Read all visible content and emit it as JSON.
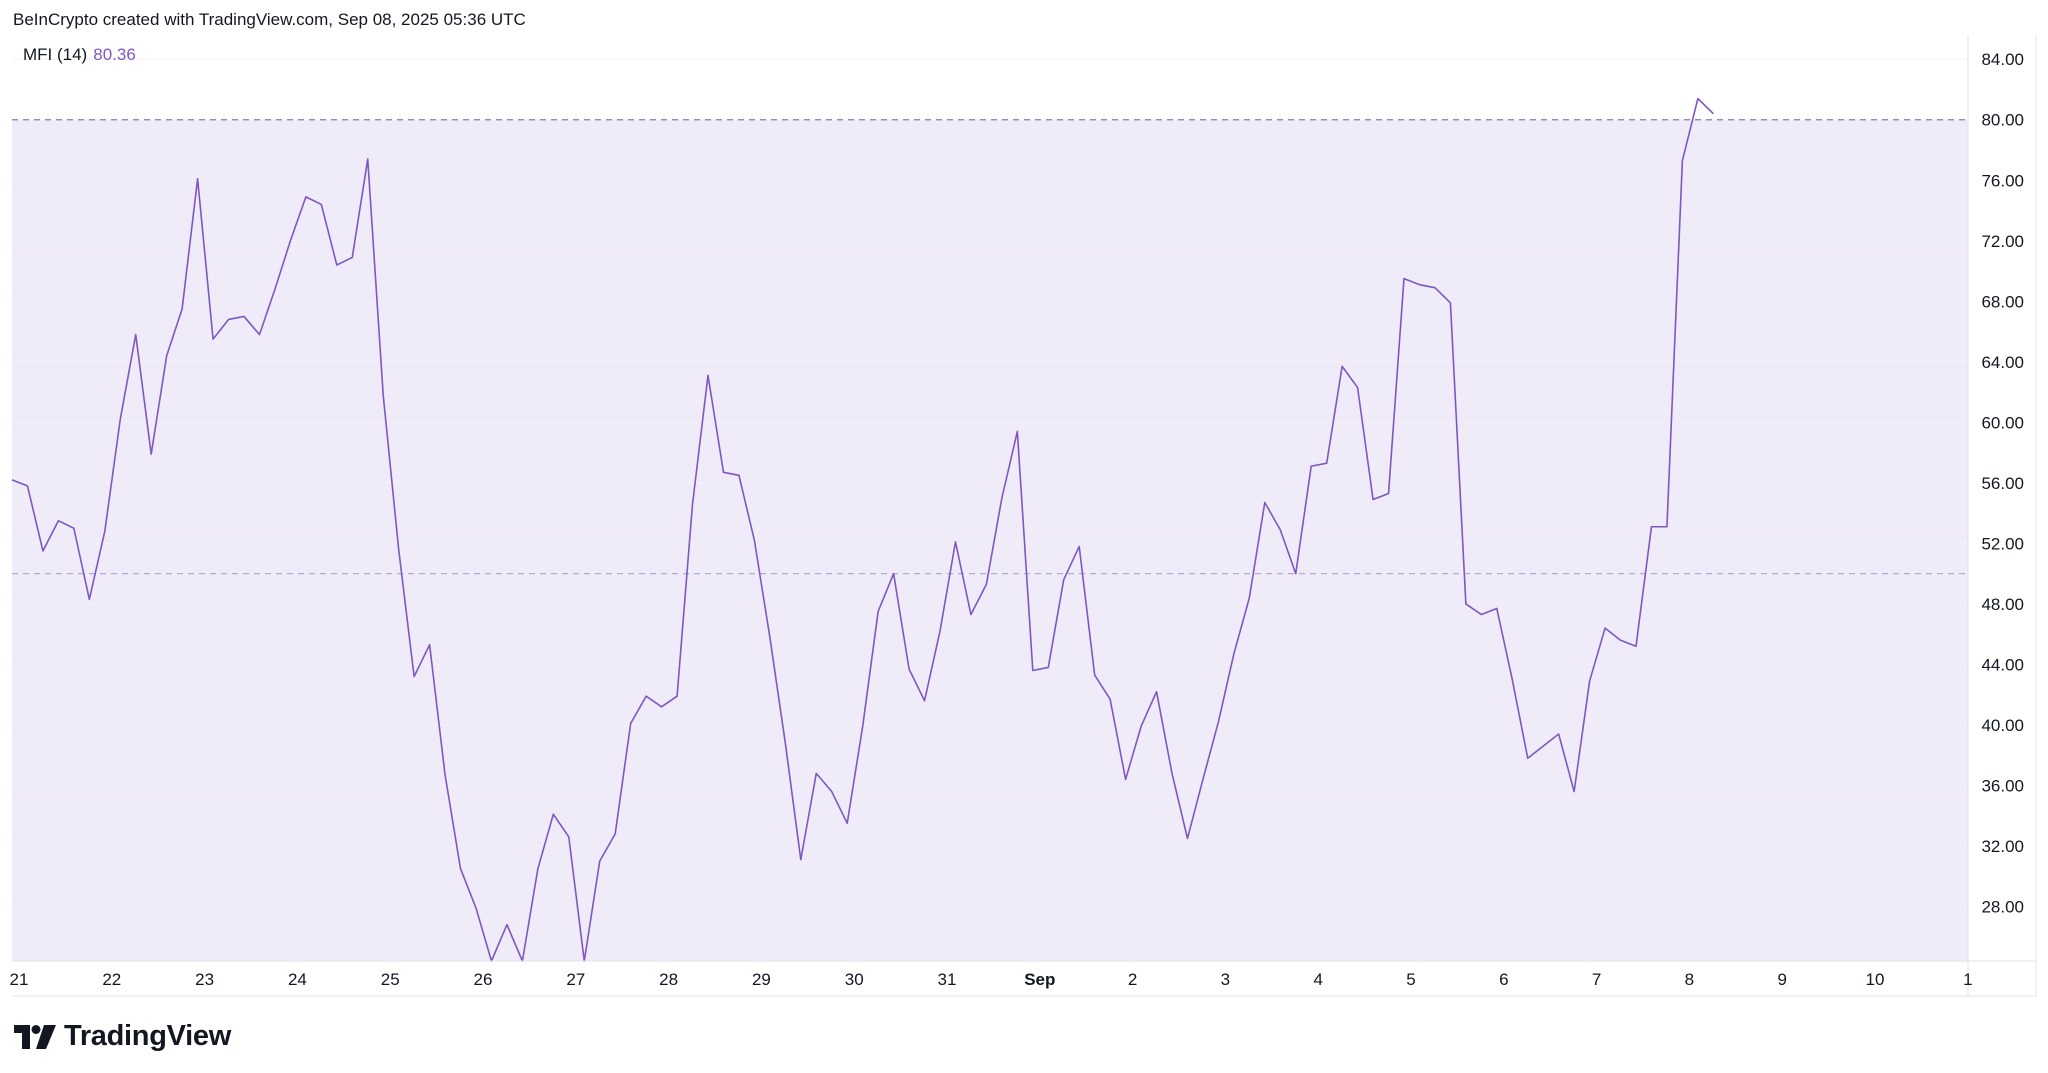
{
  "header": {
    "attribution": "BeInCrypto created with TradingView.com, Sep 08, 2025 05:36 UTC"
  },
  "legend": {
    "name": "MFI (14)",
    "value": "80.36"
  },
  "brand": {
    "name": "TradingView"
  },
  "colors": {
    "line": "#7e57c2",
    "band": "#efebf8",
    "grid": "#f0f3fa",
    "text": "#131722"
  },
  "chart_data": {
    "type": "line",
    "indicator": "MFI (14)",
    "current_value": 80.36,
    "ylim": [
      24.4,
      85.6
    ],
    "yticks": [
      "84.00",
      "80.00",
      "76.00",
      "72.00",
      "68.00",
      "64.00",
      "60.00",
      "56.00",
      "52.00",
      "48.00",
      "44.00",
      "40.00",
      "36.00",
      "32.00",
      "28.00"
    ],
    "xticks": [
      "21",
      "22",
      "23",
      "24",
      "25",
      "26",
      "27",
      "28",
      "29",
      "30",
      "31",
      "Sep",
      "2",
      "3",
      "4",
      "5",
      "6",
      "7",
      "8",
      "9",
      "10",
      "1"
    ],
    "bold_xticks": [
      "Sep"
    ],
    "reference_lines": [
      80,
      50
    ],
    "band": [
      20,
      80
    ],
    "x_start_day": 21,
    "x_end_day": 42,
    "bars_per_day": 6,
    "series": [
      {
        "values": [
          56.2,
          55.8,
          51.5,
          53.5,
          53.0,
          48.3,
          52.8,
          60.2,
          65.8,
          57.9,
          64.4,
          67.5,
          76.1,
          65.5,
          66.8,
          67.0,
          65.8,
          68.8,
          72.0,
          74.9,
          74.4,
          70.4,
          70.9,
          77.4,
          61.8,
          51.6,
          43.2,
          45.3,
          36.7,
          30.5,
          27.9,
          24.0,
          26.8,
          23.8,
          30.5,
          34.1,
          32.6,
          24.2,
          31.0,
          32.8,
          40.1,
          41.9,
          41.2,
          41.9,
          54.6,
          63.1,
          56.7,
          56.5,
          52.2,
          45.8,
          38.8,
          31.1,
          36.8,
          35.6,
          33.5,
          39.9,
          47.5,
          50.0,
          43.7,
          41.6,
          46.2,
          52.1,
          47.3,
          49.3,
          55.0,
          59.4,
          43.6,
          43.8,
          49.6,
          51.8,
          43.3,
          41.7,
          36.4,
          39.9,
          42.2,
          36.8,
          32.5,
          36.4,
          40.2,
          44.7,
          48.4,
          54.7,
          52.9,
          50.0,
          57.1,
          57.3,
          63.7,
          62.3,
          54.9,
          55.3,
          69.5,
          69.1,
          68.9,
          67.9,
          48.0,
          47.3,
          47.7,
          43.0,
          37.8,
          38.6,
          39.4,
          35.6,
          42.9,
          46.4,
          45.6,
          45.2,
          53.1,
          53.1,
          77.3,
          81.4,
          80.4
        ]
      }
    ]
  }
}
